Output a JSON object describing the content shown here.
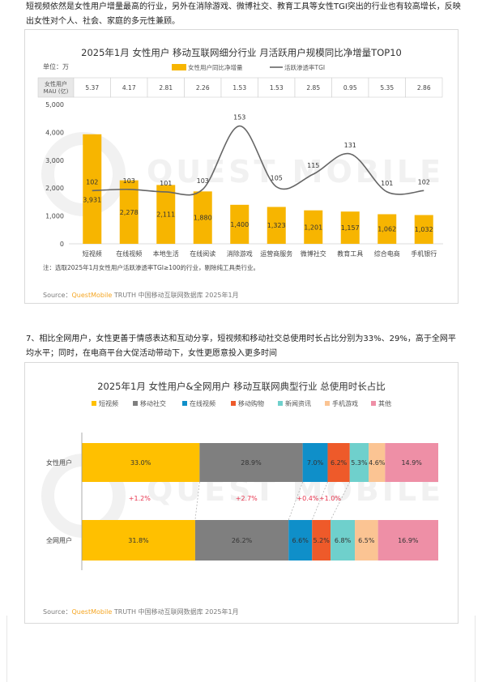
{
  "intro_text": "短视频依然是女性用户增量最高的行业，另外在消除游戏、微博社交、教育工具等女性TGI突出的行业也有较高增长，反映出女性对个人、社会、家庭的多元性兼顾。",
  "section7_text": "7、相比全网用户，女性更善于情感表达和互动分享，短视频和移动社交总使用时长占比分别为33%、29%，高于全网平均水平；同时，在电商平台大促活动带动下，女性更愿意投入更多时间",
  "watermark_text": "QUEST MOBILE",
  "chart1": {
    "unit_label": "单位：万",
    "mau_label": "女性用户 MAU (亿)",
    "footnote": "注：选取2025年1月女性用户活跃渗透率TGI≥100的行业，剔除纯工具类行业。",
    "source_prefix": "Source：",
    "source_brand": "QuestMobile",
    "source_suffix": " TRUTH 中国移动互联网数据库 2025年1月"
  },
  "chart2": {
    "source_prefix": "Source：",
    "source_brand": "QuestMobile",
    "source_suffix": " TRUTH 中国移动互联网数据库 2025年1月"
  },
  "chart_data": [
    {
      "type": "bar",
      "title": "2025年1月 女性用户 移动互联网细分行业 月活跃用户规模同比净增量TOP10",
      "categories": [
        "短视频",
        "在线视频",
        "本地生活",
        "在线阅读",
        "消除游戏",
        "运营商服务",
        "微博社交",
        "教育工具",
        "综合电商",
        "手机银行"
      ],
      "mau": [
        "5.37",
        "4.17",
        "2.81",
        "2.26",
        "1.53",
        "1.53",
        "2.85",
        "0.95",
        "5.35",
        "2.86"
      ],
      "series": [
        {
          "name": "女性用户同比净增量",
          "values": [
            3931,
            2278,
            2111,
            1880,
            1400,
            1323,
            1201,
            1157,
            1062,
            1032
          ],
          "labels": [
            "3,931",
            "2,278",
            "2,111",
            "1,880",
            "1,400",
            "1,323",
            "1,201",
            "1,157",
            "1,062",
            "1,032"
          ],
          "color": "#f7b500"
        },
        {
          "name": "活跃渗透率TGI",
          "values": [
            102,
            103,
            101,
            103,
            153,
            105,
            115,
            131,
            101,
            102
          ],
          "color": "#666666"
        }
      ],
      "ylim": [
        0,
        5000
      ],
      "yticks": [
        "0",
        "1,000",
        "2,000",
        "3,000",
        "4,000",
        "5,000"
      ],
      "ytick_values": [
        0,
        1000,
        2000,
        3000,
        4000,
        5000
      ],
      "tgi_range": [
        60,
        170
      ],
      "legend_position": "top"
    },
    {
      "type": "bar",
      "stacked": "horizontal",
      "title": "2025年1月 女性用户&全网用户 移动互联网典型行业 总使用时长占比",
      "categories": [
        "女性用户",
        "全网用户"
      ],
      "series": [
        {
          "name": "短视频",
          "color": "#ffc000",
          "values": [
            33.0,
            31.8
          ],
          "labels": [
            "33.0%",
            "31.8%"
          ]
        },
        {
          "name": "移动社交",
          "color": "#7f7f7f",
          "values": [
            28.9,
            26.2
          ],
          "labels": [
            "28.9%",
            "26.2%"
          ]
        },
        {
          "name": "在线视频",
          "color": "#0f8fc9",
          "values": [
            7.0,
            6.6
          ],
          "labels": [
            "7.0%",
            "6.6%"
          ]
        },
        {
          "name": "移动购物",
          "color": "#ee5a2a",
          "values": [
            6.2,
            5.2
          ],
          "labels": [
            "6.2%",
            "5.2%"
          ]
        },
        {
          "name": "新闻资讯",
          "color": "#6fd0cc",
          "values": [
            5.3,
            6.8
          ],
          "labels": [
            "5.3%",
            "6.8%"
          ]
        },
        {
          "name": "手机游戏",
          "color": "#fbc493",
          "values": [
            4.6,
            6.5
          ],
          "labels": [
            "4.6%",
            "6.5%"
          ]
        },
        {
          "name": "其他",
          "color": "#ee8fa6",
          "values": [
            14.9,
            16.9
          ],
          "labels": [
            "14.9%",
            "16.9%"
          ]
        }
      ],
      "diffs": [
        {
          "after_segment": 0,
          "label": "+1.2%"
        },
        {
          "after_segment": 1,
          "label": "+2.7%"
        },
        {
          "after_segment": 2,
          "label": "+0.4%"
        },
        {
          "after_segment": 3,
          "label": "+1.0%"
        }
      ],
      "diff_color": "#e8344e",
      "legend_position": "top"
    }
  ]
}
